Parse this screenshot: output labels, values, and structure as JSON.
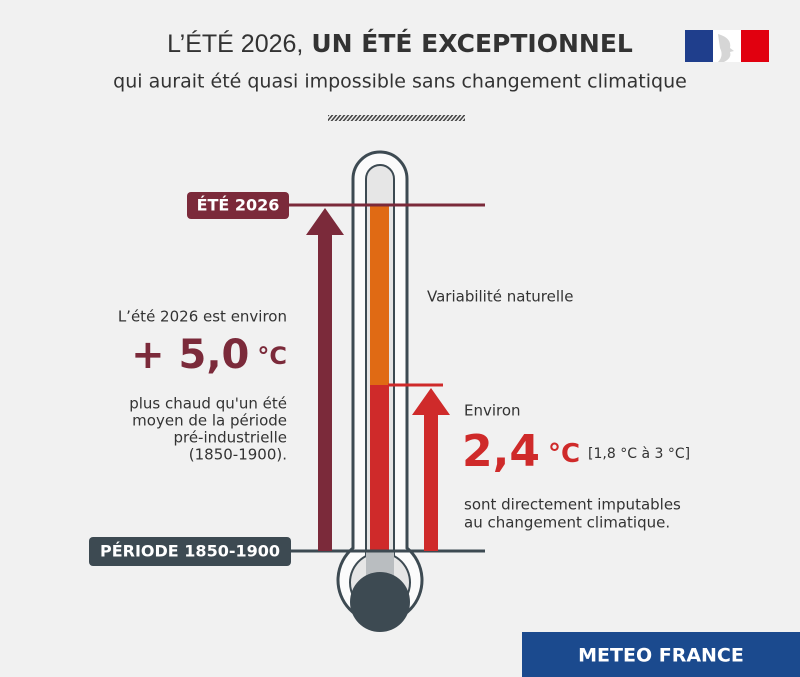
{
  "header": {
    "title_light": "L’ÉTÉ 2026,",
    "title_bold": "UN ÉTÉ EXCEPTIONNEL",
    "subtitle": "qui aurait été quasi impossible sans changement climatique"
  },
  "thermometer": {
    "top_label": "ÉTÉ 2026",
    "bottom_label": "PÉRIODE 1850-1900",
    "variability": "Variabilité naturelle"
  },
  "left_panel": {
    "intro": "L’été 2026 est environ",
    "value": "+ 5,0",
    "unit": "°C",
    "description": [
      "plus chaud qu'un été",
      "moyen de la période",
      "pré-industrielle",
      "(1850-1900)."
    ]
  },
  "right_panel": {
    "intro": "Environ",
    "value": "2,4",
    "unit": "°C",
    "range": "[1,8 °C à 3 °C]",
    "description": [
      "sont directement imputables",
      "au changement climatique."
    ]
  },
  "footer": {
    "brand": "METEO FRANCE"
  }
}
